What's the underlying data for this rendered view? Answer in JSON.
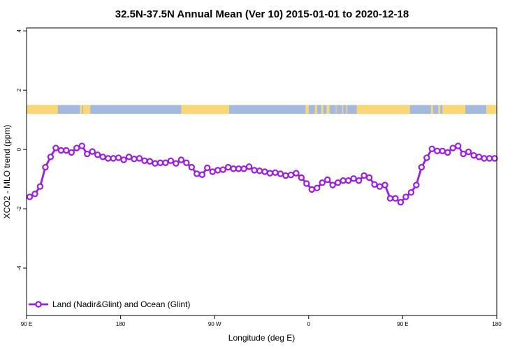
{
  "chart_data": {
    "type": "line",
    "title": "32.5N-37.5N Annual Mean (Ver 10)   2015-01-01 to 2020-12-18",
    "xlabel": "Longitude (deg E)",
    "ylabel": "XCO2 - MLO trend (ppm)",
    "xlim": [
      90,
      540
    ],
    "ylim": [
      -5.6,
      4.1
    ],
    "x_ticks": [
      {
        "value": 90,
        "label": "90 E"
      },
      {
        "value": 180,
        "label": "180"
      },
      {
        "value": 270,
        "label": "90 W"
      },
      {
        "value": 360,
        "label": "0"
      },
      {
        "value": 450,
        "label": "90 E"
      },
      {
        "value": 540,
        "label": "180"
      }
    ],
    "y_ticks": [
      {
        "value": 4,
        "label": "4"
      },
      {
        "value": 2,
        "label": "2"
      },
      {
        "value": 0,
        "label": "0"
      },
      {
        "value": -2,
        "label": "-2"
      },
      {
        "value": -4,
        "label": "-4"
      }
    ],
    "grid": false,
    "legend_position": "bottom-left",
    "colors": {
      "series": "#9b1ee0",
      "land": "#f9d776",
      "ocean": "#a4b9de"
    },
    "surface_strip": {
      "y_range": [
        1.2,
        1.5
      ],
      "land_segments": [
        [
          90,
          120
        ],
        [
          141,
          143
        ],
        [
          144,
          151
        ],
        [
          238,
          284
        ],
        [
          357,
          360
        ],
        [
          366,
          368
        ],
        [
          372,
          374
        ],
        [
          377,
          380
        ],
        [
          386,
          386.5
        ],
        [
          392,
          393
        ],
        [
          396,
          397
        ],
        [
          406,
          457
        ],
        [
          477,
          479
        ],
        [
          484,
          486
        ],
        [
          488,
          510
        ],
        [
          530,
          540
        ]
      ]
    },
    "series": [
      {
        "name": "Land (Nadir&Glint) and Ocean (Glint)",
        "x": [
          93,
          98,
          103,
          108,
          113,
          118,
          123,
          128,
          133,
          138,
          143,
          148,
          153,
          158,
          163,
          168,
          173,
          178,
          183,
          188,
          193,
          198,
          203,
          208,
          213,
          218,
          223,
          228,
          233,
          238,
          243,
          248,
          253,
          258,
          263,
          268,
          273,
          278,
          283,
          288,
          293,
          298,
          303,
          308,
          313,
          318,
          323,
          328,
          333,
          338,
          343,
          348,
          353,
          358,
          363,
          368,
          373,
          378,
          383,
          388,
          393,
          398,
          403,
          408,
          413,
          418,
          423,
          428,
          433,
          438,
          443,
          448,
          453,
          458,
          463,
          468,
          473,
          478,
          483,
          488,
          493,
          498,
          503,
          508,
          513,
          518,
          523,
          528,
          533,
          538
        ],
        "values": [
          -1.6,
          -1.5,
          -1.25,
          -0.6,
          -0.25,
          0.05,
          -0.03,
          -0.03,
          -0.1,
          0.05,
          0.12,
          -0.15,
          -0.07,
          -0.18,
          -0.25,
          -0.3,
          -0.3,
          -0.28,
          -0.35,
          -0.25,
          -0.32,
          -0.3,
          -0.38,
          -0.4,
          -0.47,
          -0.45,
          -0.45,
          -0.38,
          -0.47,
          -0.35,
          -0.45,
          -0.6,
          -0.82,
          -0.85,
          -0.62,
          -0.75,
          -0.7,
          -0.68,
          -0.6,
          -0.65,
          -0.65,
          -0.65,
          -0.58,
          -0.7,
          -0.72,
          -0.75,
          -0.8,
          -0.78,
          -0.82,
          -0.88,
          -0.86,
          -0.8,
          -0.95,
          -1.15,
          -1.35,
          -1.3,
          -1.12,
          -1.02,
          -1.2,
          -1.12,
          -1.05,
          -1.05,
          -0.98,
          -1.05,
          -0.88,
          -0.95,
          -1.18,
          -1.25,
          -1.2,
          -1.65,
          -1.65,
          -1.78,
          -1.6,
          -1.45,
          -1.2,
          -0.6,
          -0.28,
          0.02,
          -0.05,
          -0.05,
          -0.1,
          0.05,
          0.12,
          -0.15,
          -0.08,
          -0.2,
          -0.25,
          -0.3,
          -0.3,
          -0.3
        ]
      }
    ]
  }
}
